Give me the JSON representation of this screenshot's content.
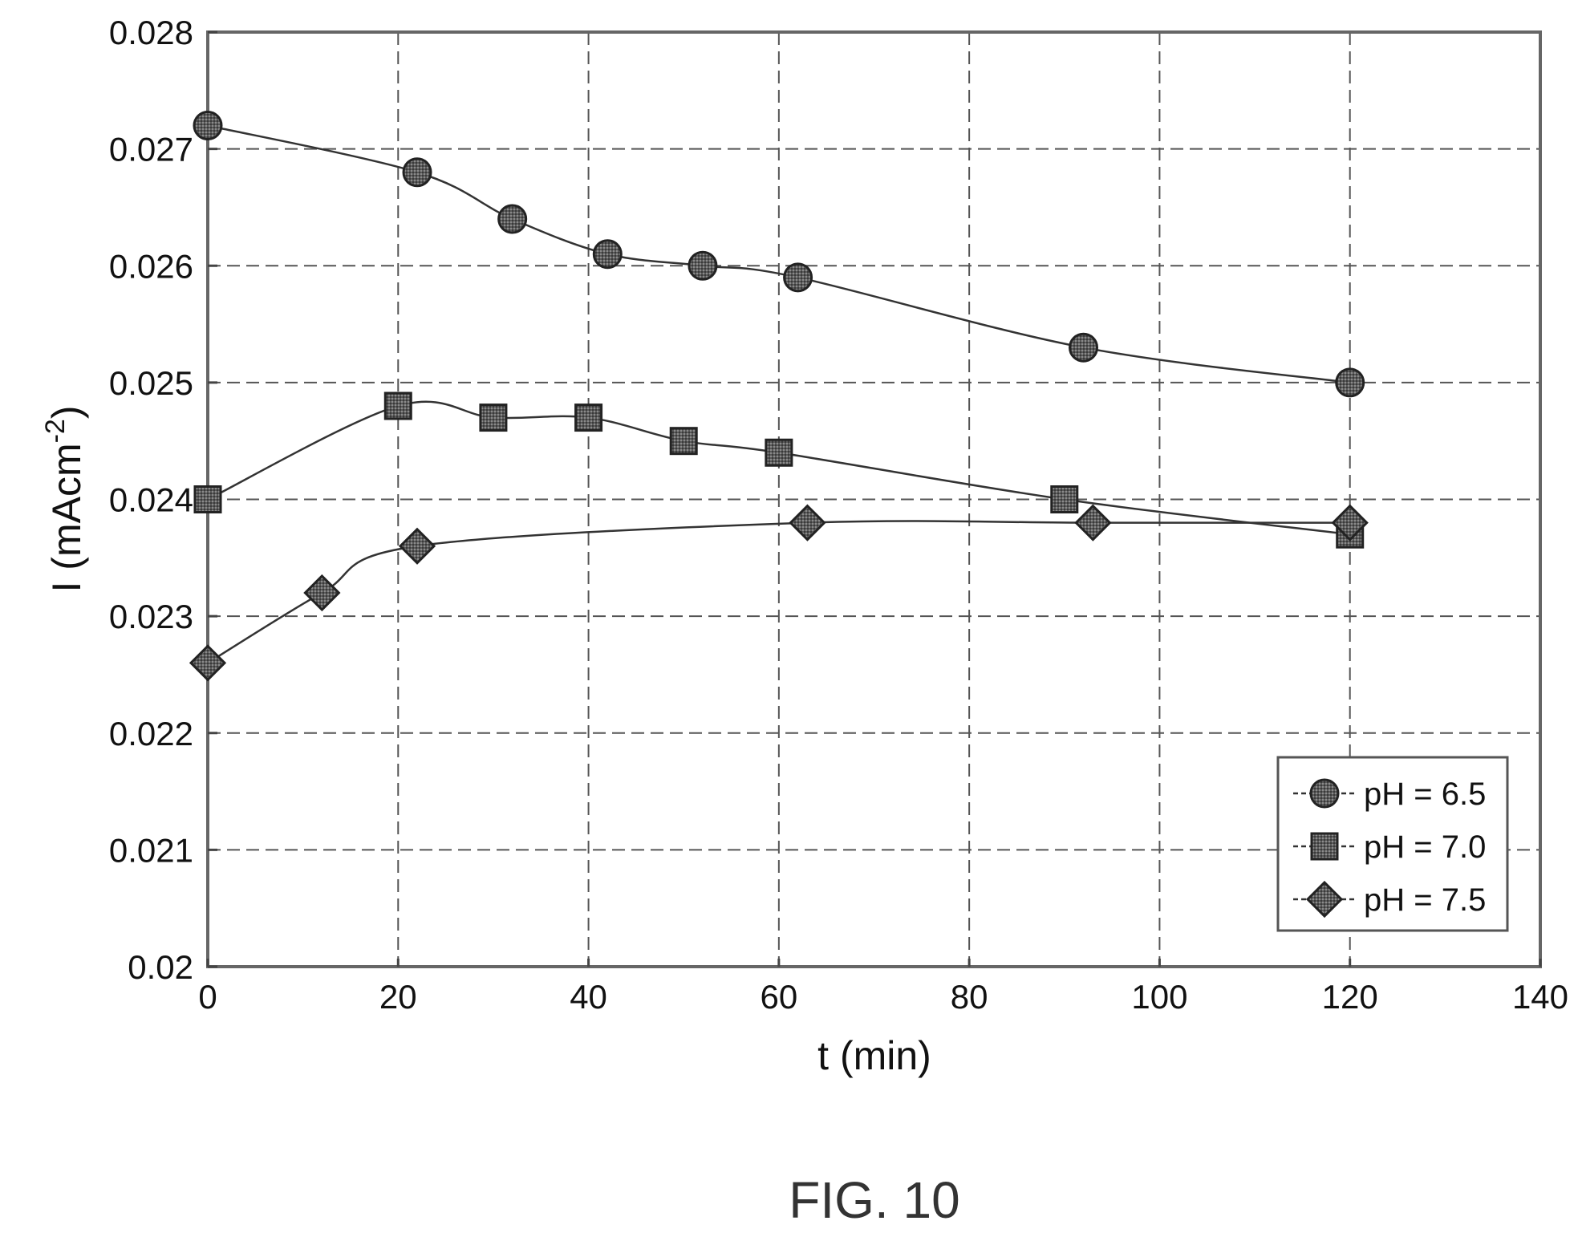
{
  "figure_label": "FIG. 10",
  "chart_data": {
    "type": "line",
    "xlabel": "t (min)",
    "ylabel_main": "I (mAcm",
    "ylabel_sup": "-2",
    "ylabel_close": ")",
    "xlim": [
      0,
      140
    ],
    "ylim": [
      0.02,
      0.028
    ],
    "x_ticks": [
      "0",
      "20",
      "40",
      "60",
      "80",
      "100",
      "120",
      "140"
    ],
    "y_ticks": [
      "0.02",
      "0.021",
      "0.022",
      "0.023",
      "0.024",
      "0.025",
      "0.026",
      "0.027",
      "0.028"
    ],
    "grid": true,
    "legend_position": "bottom-right",
    "series": [
      {
        "name": "pH = 6.5",
        "marker": "circle",
        "x": [
          0,
          22,
          32,
          42,
          52,
          62,
          92,
          120
        ],
        "y": [
          0.0272,
          0.0268,
          0.0264,
          0.0261,
          0.026,
          0.0259,
          0.0253,
          0.025
        ]
      },
      {
        "name": "pH = 7.0",
        "marker": "square",
        "x": [
          0,
          20,
          30,
          40,
          50,
          60,
          90,
          120
        ],
        "y": [
          0.024,
          0.0248,
          0.0247,
          0.0247,
          0.0245,
          0.0244,
          0.024,
          0.0237
        ]
      },
      {
        "name": "pH = 7.5",
        "marker": "diamond",
        "x": [
          0,
          12,
          22,
          63,
          93,
          120
        ],
        "y": [
          0.0226,
          0.0232,
          0.0236,
          0.0238,
          0.0238,
          0.0238
        ]
      }
    ]
  }
}
